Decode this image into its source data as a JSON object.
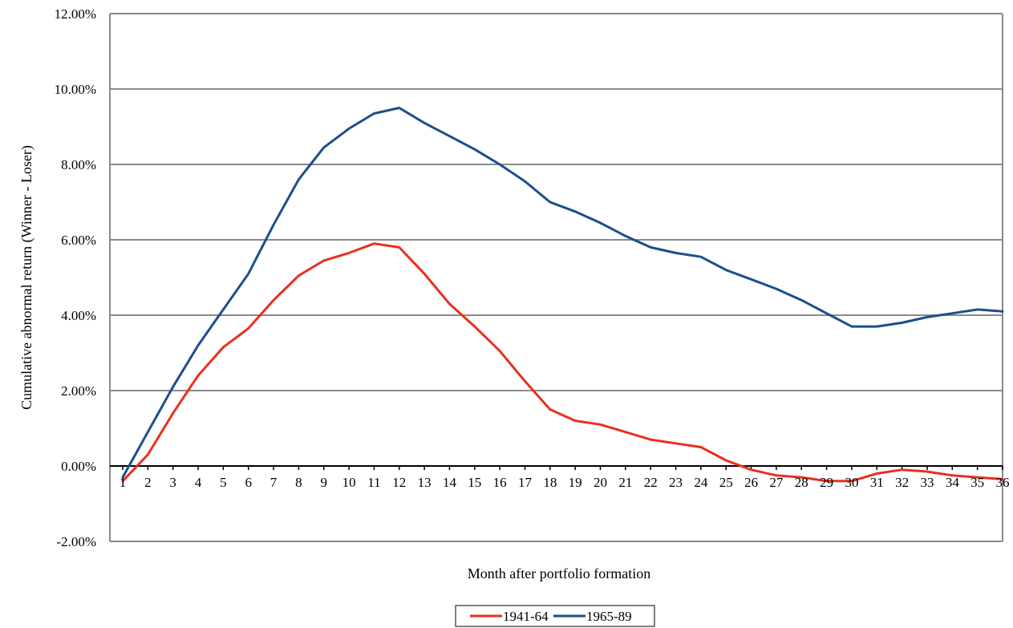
{
  "chart_data": {
    "type": "line",
    "title": "",
    "xlabel": "Month after portfolio formation",
    "ylabel": "Cumulative abnormal return (Winner - Loser)",
    "categories": [
      "1",
      "2",
      "3",
      "4",
      "5",
      "6",
      "7",
      "8",
      "9",
      "10",
      "11",
      "12",
      "13",
      "14",
      "15",
      "16",
      "17",
      "18",
      "19",
      "20",
      "21",
      "22",
      "23",
      "24",
      "25",
      "26",
      "27",
      "28",
      "29",
      "30",
      "31",
      "32",
      "33",
      "34",
      "35",
      "36"
    ],
    "y_ticks": [
      "12.00%",
      "10.00%",
      "8.00%",
      "6.00%",
      "4.00%",
      "2.00%",
      "0.00%",
      "-2.00%"
    ],
    "y_tick_values": [
      12,
      10,
      8,
      6,
      4,
      2,
      0,
      -2
    ],
    "ylim": [
      -2,
      12
    ],
    "grid": true,
    "legend_position": "bottom",
    "series": [
      {
        "name": "1941-64",
        "color": "#e8301e",
        "values": [
          -0.4,
          0.3,
          1.4,
          2.4,
          3.15,
          3.65,
          4.4,
          5.05,
          5.45,
          5.65,
          5.9,
          5.8,
          5.1,
          4.3,
          3.7,
          3.05,
          2.25,
          1.5,
          1.2,
          1.1,
          0.9,
          0.7,
          0.6,
          0.5,
          0.15,
          -0.1,
          -0.25,
          -0.3,
          -0.4,
          -0.4,
          -0.2,
          -0.1,
          -0.15,
          -0.25,
          -0.3,
          -0.35
        ]
      },
      {
        "name": "1965-89",
        "color": "#1c4f8a",
        "values": [
          -0.3,
          0.9,
          2.1,
          3.2,
          4.15,
          5.1,
          6.4,
          7.6,
          8.45,
          8.95,
          9.35,
          9.5,
          9.1,
          8.75,
          8.4,
          8.0,
          7.55,
          7.0,
          6.75,
          6.45,
          6.1,
          5.8,
          5.65,
          5.55,
          5.2,
          4.95,
          4.7,
          4.4,
          4.05,
          3.7,
          3.7,
          3.8,
          3.95,
          4.05,
          4.15,
          4.1
        ]
      }
    ]
  }
}
